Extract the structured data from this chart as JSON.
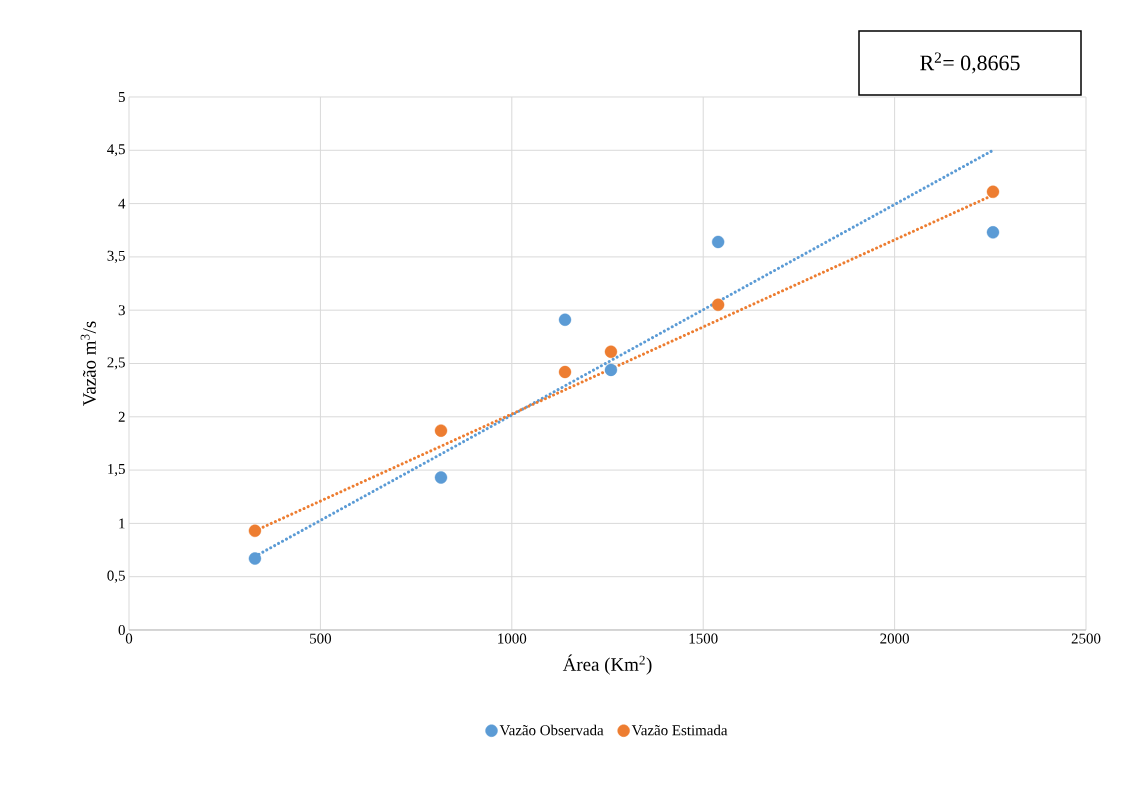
{
  "chart_data": {
    "type": "scatter",
    "xlabel": "Área (Km$^{2}$)",
    "ylabel": "Vazão m$^{3}$/s",
    "annotations": [
      "R$^{2}$= 0,8665"
    ],
    "series": [
      {
        "name": "Vazão Observada",
        "color": "#5b9bd5",
        "marker": "circle",
        "x": [
          329,
          815,
          1139,
          1259,
          1539,
          2257
        ],
        "values": [
          0.67,
          1.43,
          2.91,
          2.44,
          3.64,
          3.73
        ]
      },
      {
        "name": "Vazão Estimada",
        "color": "#ed7d31",
        "marker": "circle",
        "x": [
          329,
          815,
          1139,
          1259,
          1539,
          2257
        ],
        "values": [
          0.93,
          1.87,
          2.42,
          2.61,
          3.05,
          4.11
        ]
      },
      {
        "type": "line",
        "color": "#5b9bd5",
        "line_style": "dotted",
        "marker": "none",
        "x": [
          329,
          2257
        ],
        "values": [
          0.69,
          4.5
        ]
      },
      {
        "type": "line",
        "color": "#ed7d31",
        "line_style": "dotted",
        "marker": "none",
        "x": [
          329,
          2257
        ],
        "values": [
          0.93,
          4.08
        ]
      }
    ],
    "grid": true,
    "legend": "bottom",
    "xlim": [
      0,
      2500
    ],
    "xticks": [
      0,
      500,
      1000,
      1500,
      2000,
      2500
    ],
    "ylim": [
      0,
      5
    ],
    "yticks": [
      0,
      {
        "value": 0.5,
        "label": "0,5"
      },
      1,
      {
        "value": 1.5,
        "label": "1,5"
      },
      2,
      {
        "value": 2.5,
        "label": "2,5"
      },
      3,
      {
        "value": 3.5,
        "label": "3,5"
      },
      4,
      {
        "value": 4.5,
        "label": "4,5"
      },
      5
    ]
  }
}
